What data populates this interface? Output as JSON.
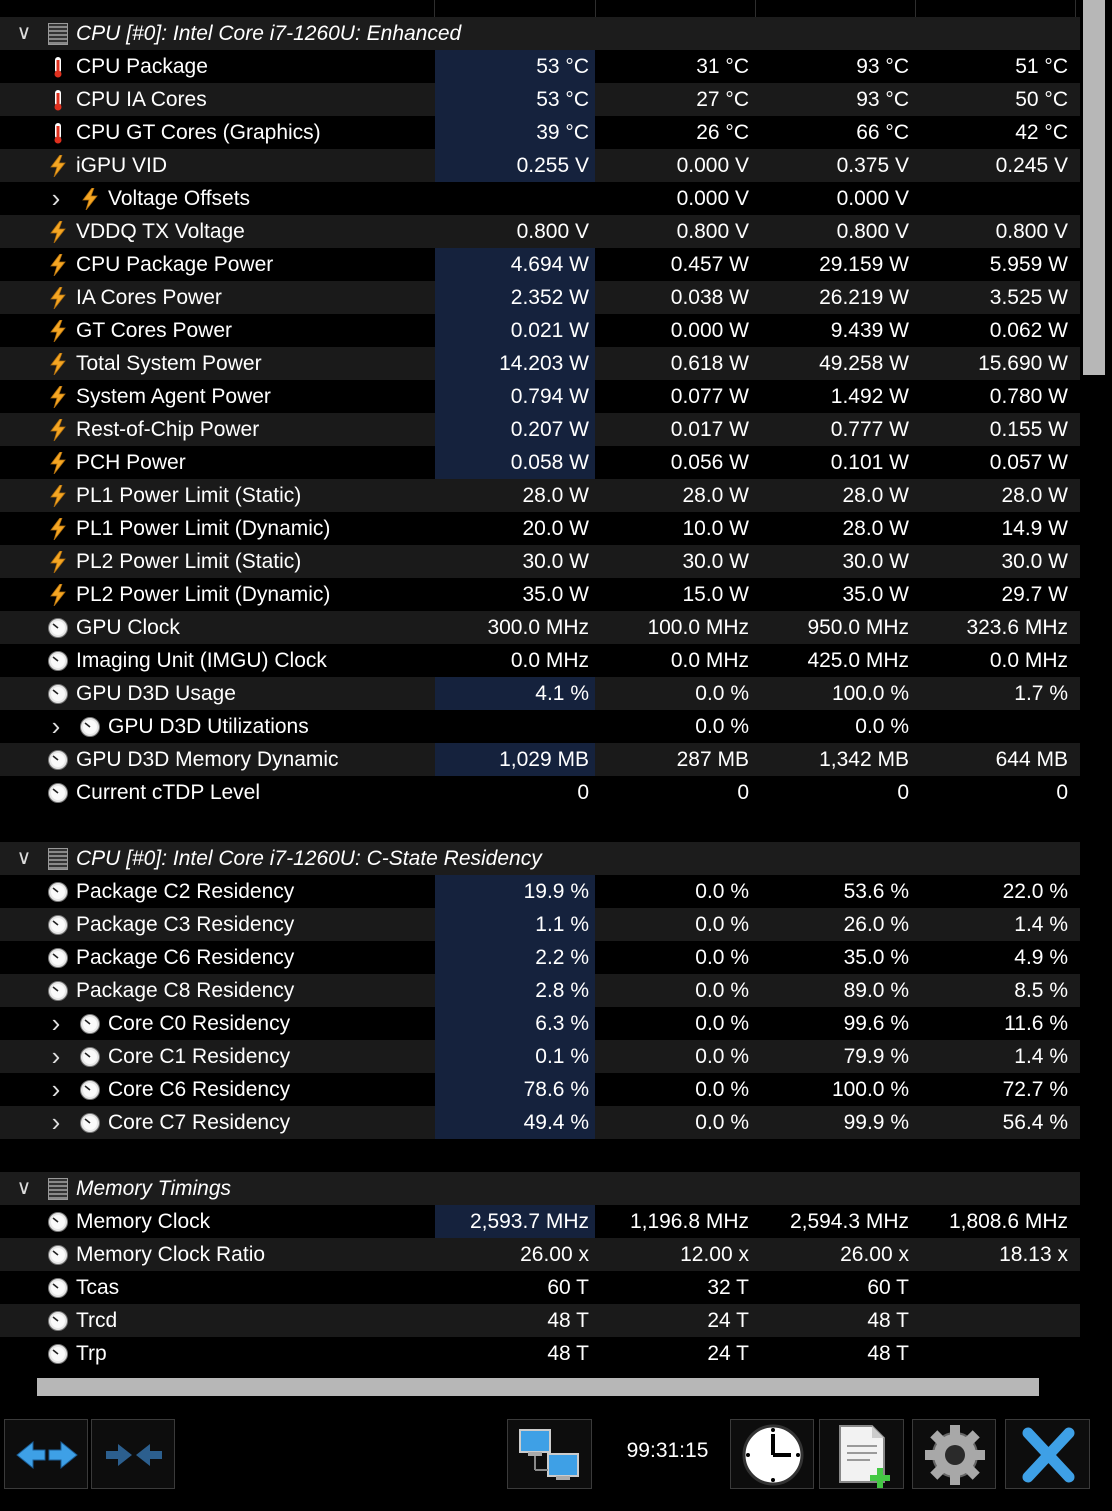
{
  "sections": [
    {
      "title": "CPU [#0]: Intel Core i7-1260U: Enhanced",
      "rows": [
        {
          "label": "CPU Package",
          "icon": "thermometer-icon",
          "current": "53 °C",
          "min": "31 °C",
          "max": "93 °C",
          "avg": "51 °C",
          "indent": false,
          "expander": false,
          "hl": true
        },
        {
          "label": "CPU IA Cores",
          "icon": "thermometer-icon",
          "current": "53 °C",
          "min": "27 °C",
          "max": "93 °C",
          "avg": "50 °C",
          "indent": false,
          "expander": false,
          "hl": true
        },
        {
          "label": "CPU GT Cores (Graphics)",
          "icon": "thermometer-icon",
          "current": "39 °C",
          "min": "26 °C",
          "max": "66 °C",
          "avg": "42 °C",
          "indent": false,
          "expander": false,
          "hl": true
        },
        {
          "label": "iGPU VID",
          "icon": "lightning-icon",
          "current": "0.255 V",
          "min": "0.000 V",
          "max": "0.375 V",
          "avg": "0.245 V",
          "indent": false,
          "expander": false,
          "hl": true
        },
        {
          "label": "Voltage Offsets",
          "icon": "lightning-icon",
          "current": "",
          "min": "0.000 V",
          "max": "0.000 V",
          "avg": "",
          "indent": true,
          "expander": true,
          "hl": false
        },
        {
          "label": "VDDQ TX Voltage",
          "icon": "lightning-icon",
          "current": "0.800 V",
          "min": "0.800 V",
          "max": "0.800 V",
          "avg": "0.800 V",
          "indent": false,
          "expander": false,
          "hl": false
        },
        {
          "label": "CPU Package Power",
          "icon": "lightning-icon",
          "current": "4.694 W",
          "min": "0.457 W",
          "max": "29.159 W",
          "avg": "5.959 W",
          "indent": false,
          "expander": false,
          "hl": true
        },
        {
          "label": "IA Cores Power",
          "icon": "lightning-icon",
          "current": "2.352 W",
          "min": "0.038 W",
          "max": "26.219 W",
          "avg": "3.525 W",
          "indent": false,
          "expander": false,
          "hl": true
        },
        {
          "label": "GT Cores Power",
          "icon": "lightning-icon",
          "current": "0.021 W",
          "min": "0.000 W",
          "max": "9.439 W",
          "avg": "0.062 W",
          "indent": false,
          "expander": false,
          "hl": true
        },
        {
          "label": "Total System Power",
          "icon": "lightning-icon",
          "current": "14.203 W",
          "min": "0.618 W",
          "max": "49.258 W",
          "avg": "15.690 W",
          "indent": false,
          "expander": false,
          "hl": true
        },
        {
          "label": "System Agent Power",
          "icon": "lightning-icon",
          "current": "0.794 W",
          "min": "0.077 W",
          "max": "1.492 W",
          "avg": "0.780 W",
          "indent": false,
          "expander": false,
          "hl": true
        },
        {
          "label": "Rest-of-Chip Power",
          "icon": "lightning-icon",
          "current": "0.207 W",
          "min": "0.017 W",
          "max": "0.777 W",
          "avg": "0.155 W",
          "indent": false,
          "expander": false,
          "hl": true
        },
        {
          "label": "PCH Power",
          "icon": "lightning-icon",
          "current": "0.058 W",
          "min": "0.056 W",
          "max": "0.101 W",
          "avg": "0.057 W",
          "indent": false,
          "expander": false,
          "hl": true
        },
        {
          "label": "PL1 Power Limit (Static)",
          "icon": "lightning-icon",
          "current": "28.0 W",
          "min": "28.0 W",
          "max": "28.0 W",
          "avg": "28.0 W",
          "indent": false,
          "expander": false,
          "hl": false
        },
        {
          "label": "PL1 Power Limit (Dynamic)",
          "icon": "lightning-icon",
          "current": "20.0 W",
          "min": "10.0 W",
          "max": "28.0 W",
          "avg": "14.9 W",
          "indent": false,
          "expander": false,
          "hl": false
        },
        {
          "label": "PL2 Power Limit (Static)",
          "icon": "lightning-icon",
          "current": "30.0 W",
          "min": "30.0 W",
          "max": "30.0 W",
          "avg": "30.0 W",
          "indent": false,
          "expander": false,
          "hl": false
        },
        {
          "label": "PL2 Power Limit (Dynamic)",
          "icon": "lightning-icon",
          "current": "35.0 W",
          "min": "15.0 W",
          "max": "35.0 W",
          "avg": "29.7 W",
          "indent": false,
          "expander": false,
          "hl": false
        },
        {
          "label": "GPU Clock",
          "icon": "gauge-icon",
          "current": "300.0 MHz",
          "min": "100.0 MHz",
          "max": "950.0 MHz",
          "avg": "323.6 MHz",
          "indent": false,
          "expander": false,
          "hl": false
        },
        {
          "label": "Imaging Unit (IMGU) Clock",
          "icon": "gauge-icon",
          "current": "0.0 MHz",
          "min": "0.0 MHz",
          "max": "425.0 MHz",
          "avg": "0.0 MHz",
          "indent": false,
          "expander": false,
          "hl": false
        },
        {
          "label": "GPU D3D Usage",
          "icon": "gauge-icon",
          "current": "4.1 %",
          "min": "0.0 %",
          "max": "100.0 %",
          "avg": "1.7 %",
          "indent": false,
          "expander": false,
          "hl": true
        },
        {
          "label": "GPU D3D Utilizations",
          "icon": "gauge-icon",
          "current": "",
          "min": "0.0 %",
          "max": "0.0 %",
          "avg": "",
          "indent": true,
          "expander": true,
          "hl": false
        },
        {
          "label": "GPU D3D Memory Dynamic",
          "icon": "gauge-icon",
          "current": "1,029 MB",
          "min": "287 MB",
          "max": "1,342 MB",
          "avg": "644 MB",
          "indent": false,
          "expander": false,
          "hl": true
        },
        {
          "label": "Current cTDP Level",
          "icon": "gauge-icon",
          "current": "0",
          "min": "0",
          "max": "0",
          "avg": "0",
          "indent": false,
          "expander": false,
          "hl": false
        }
      ]
    },
    {
      "title": "CPU [#0]: Intel Core i7-1260U: C-State Residency",
      "rows": [
        {
          "label": "Package C2 Residency",
          "icon": "gauge-icon",
          "current": "19.9 %",
          "min": "0.0 %",
          "max": "53.6 %",
          "avg": "22.0 %",
          "indent": false,
          "expander": false,
          "hl": true
        },
        {
          "label": "Package C3 Residency",
          "icon": "gauge-icon",
          "current": "1.1 %",
          "min": "0.0 %",
          "max": "26.0 %",
          "avg": "1.4 %",
          "indent": false,
          "expander": false,
          "hl": true
        },
        {
          "label": "Package C6 Residency",
          "icon": "gauge-icon",
          "current": "2.2 %",
          "min": "0.0 %",
          "max": "35.0 %",
          "avg": "4.9 %",
          "indent": false,
          "expander": false,
          "hl": true
        },
        {
          "label": "Package C8 Residency",
          "icon": "gauge-icon",
          "current": "2.8 %",
          "min": "0.0 %",
          "max": "89.0 %",
          "avg": "8.5 %",
          "indent": false,
          "expander": false,
          "hl": true
        },
        {
          "label": "Core C0 Residency",
          "icon": "gauge-icon",
          "current": "6.3 %",
          "min": "0.0 %",
          "max": "99.6 %",
          "avg": "11.6 %",
          "indent": true,
          "expander": true,
          "hl": true
        },
        {
          "label": "Core C1 Residency",
          "icon": "gauge-icon",
          "current": "0.1 %",
          "min": "0.0 %",
          "max": "79.9 %",
          "avg": "1.4 %",
          "indent": true,
          "expander": true,
          "hl": true
        },
        {
          "label": "Core C6 Residency",
          "icon": "gauge-icon",
          "current": "78.6 %",
          "min": "0.0 %",
          "max": "100.0 %",
          "avg": "72.7 %",
          "indent": true,
          "expander": true,
          "hl": true
        },
        {
          "label": "Core C7 Residency",
          "icon": "gauge-icon",
          "current": "49.4 %",
          "min": "0.0 %",
          "max": "99.9 %",
          "avg": "56.4 %",
          "indent": true,
          "expander": true,
          "hl": true
        }
      ]
    },
    {
      "title": "Memory Timings",
      "rows": [
        {
          "label": "Memory Clock",
          "icon": "gauge-icon",
          "current": "2,593.7 MHz",
          "min": "1,196.8 MHz",
          "max": "2,594.3 MHz",
          "avg": "1,808.6 MHz",
          "indent": false,
          "expander": false,
          "hl": true
        },
        {
          "label": "Memory Clock Ratio",
          "icon": "gauge-icon",
          "current": "26.00 x",
          "min": "12.00 x",
          "max": "26.00 x",
          "avg": "18.13 x",
          "indent": false,
          "expander": false,
          "hl": false
        },
        {
          "label": "Tcas",
          "icon": "gauge-icon",
          "current": "60 T",
          "min": "32 T",
          "max": "60 T",
          "avg": "",
          "indent": false,
          "expander": false,
          "hl": false
        },
        {
          "label": "Trcd",
          "icon": "gauge-icon",
          "current": "48 T",
          "min": "24 T",
          "max": "48 T",
          "avg": "",
          "indent": false,
          "expander": false,
          "hl": false
        },
        {
          "label": "Trp",
          "icon": "gauge-icon",
          "current": "48 T",
          "min": "24 T",
          "max": "48 T",
          "avg": "",
          "indent": false,
          "expander": false,
          "hl": false
        }
      ]
    }
  ],
  "toolbar": {
    "timer": "99:31:15",
    "buttons": [
      {
        "name": "expand-arrows-button",
        "icon": "double-arrow-out-icon"
      },
      {
        "name": "collapse-arrows-button",
        "icon": "double-arrow-in-icon"
      },
      {
        "name": "network-button",
        "icon": "network-computers-icon"
      },
      {
        "name": "clock-button",
        "icon": "clock-icon"
      },
      {
        "name": "add-report-button",
        "icon": "document-add-icon"
      },
      {
        "name": "settings-button",
        "icon": "gear-icon"
      },
      {
        "name": "close-button",
        "icon": "close-icon"
      }
    ]
  },
  "colors": {
    "highlight": "#15223d",
    "row_alt": "#1a1a1a",
    "lightning": "#f5a623",
    "thermo": "#e0301e",
    "close": "#3ea0e6"
  }
}
